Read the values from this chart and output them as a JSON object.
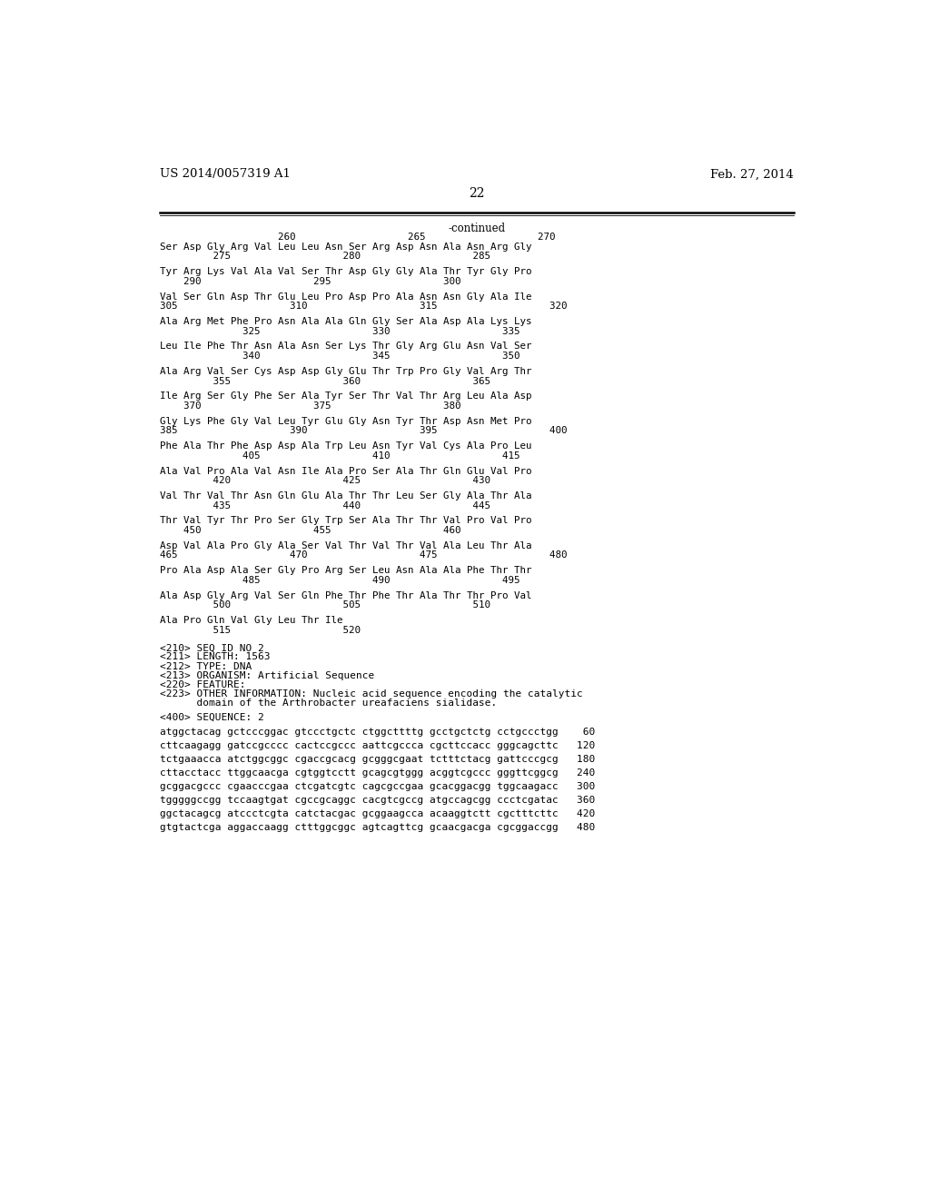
{
  "header_left": "US 2014/0057319 A1",
  "header_right": "Feb. 27, 2014",
  "page_number": "22",
  "continued_label": "-continued",
  "background_color": "#ffffff",
  "text_color": "#000000",
  "sequence_blocks": [
    {
      "seq": "Ser Asp Gly Arg Val Leu Leu Asn Ser Arg Asp Asn Ala Asn Arg Gly",
      "nums": "         275                   280                   285"
    },
    {
      "seq": "Tyr Arg Lys Val Ala Val Ser Thr Asp Gly Gly Ala Thr Tyr Gly Pro",
      "nums": "    290                   295                   300"
    },
    {
      "seq": "Val Ser Gln Asp Thr Glu Leu Pro Asp Pro Ala Asn Asn Gly Ala Ile",
      "nums": "305                   310                   315                   320"
    },
    {
      "seq": "Ala Arg Met Phe Pro Asn Ala Ala Gln Gly Ser Ala Asp Ala Lys Lys",
      "nums": "              325                   330                   335"
    },
    {
      "seq": "Leu Ile Phe Thr Asn Ala Asn Ser Lys Thr Gly Arg Glu Asn Val Ser",
      "nums": "              340                   345                   350"
    },
    {
      "seq": "Ala Arg Val Ser Cys Asp Asp Gly Glu Thr Trp Pro Gly Val Arg Thr",
      "nums": "         355                   360                   365"
    },
    {
      "seq": "Ile Arg Ser Gly Phe Ser Ala Tyr Ser Thr Val Thr Arg Leu Ala Asp",
      "nums": "    370                   375                   380"
    },
    {
      "seq": "Gly Lys Phe Gly Val Leu Tyr Glu Gly Asn Tyr Thr Asp Asn Met Pro",
      "nums": "385                   390                   395                   400"
    },
    {
      "seq": "Phe Ala Thr Phe Asp Asp Ala Trp Leu Asn Tyr Val Cys Ala Pro Leu",
      "nums": "              405                   410                   415"
    },
    {
      "seq": "Ala Val Pro Ala Val Asn Ile Ala Pro Ser Ala Thr Gln Glu Val Pro",
      "nums": "         420                   425                   430"
    },
    {
      "seq": "Val Thr Val Thr Asn Gln Glu Ala Thr Thr Leu Ser Gly Ala Thr Ala",
      "nums": "         435                   440                   445"
    },
    {
      "seq": "Thr Val Tyr Thr Pro Ser Gly Trp Ser Ala Thr Thr Val Pro Val Pro",
      "nums": "    450                   455                   460"
    },
    {
      "seq": "Asp Val Ala Pro Gly Ala Ser Val Thr Val Thr Val Ala Leu Thr Ala",
      "nums": "465                   470                   475                   480"
    },
    {
      "seq": "Pro Ala Asp Ala Ser Gly Pro Arg Ser Leu Asn Ala Ala Phe Thr Thr",
      "nums": "              485                   490                   495"
    },
    {
      "seq": "Ala Asp Gly Arg Val Ser Gln Phe Thr Phe Thr Ala Thr Thr Pro Val",
      "nums": "         500                   505                   510"
    },
    {
      "seq": "Ala Pro Gln Val Gly Leu Thr Ile",
      "nums": "         515                   520"
    }
  ],
  "first_num_line": "                    260                   265                   270",
  "metadata_lines": [
    "<210> SEQ ID NO 2",
    "<211> LENGTH: 1563",
    "<212> TYPE: DNA",
    "<213> ORGANISM: Artificial Sequence",
    "<220> FEATURE:",
    "<223> OTHER INFORMATION: Nucleic acid sequence encoding the catalytic",
    "      domain of the Arthrobacter ureafaciens sialidase."
  ],
  "seq_id_line": "<400> SEQUENCE: 2",
  "dna_lines": [
    {
      "seq": "atggctacag gctcccggac gtccctgctc ctggcttttg gcctgctctg cctgccctgg",
      "num": "    60"
    },
    {
      "seq": "cttcaagagg gatccgcccc cactccgccc aattcgccca cgcttccacc gggcagcttc",
      "num": "   120"
    },
    {
      "seq": "tctgaaacca atctggcggc cgaccgcacg gcgggcgaat tctttctacg gattcccgcg",
      "num": "   180"
    },
    {
      "seq": "cttacctacc ttggcaacga cgtggtcctt gcagcgtggg acggtcgccc gggttcggcg",
      "num": "   240"
    },
    {
      "seq": "gcggacgccc cgaacccgaa ctcgatcgtc cagcgccgaa gcacggacgg tggcaagacc",
      "num": "   300"
    },
    {
      "seq": "tgggggccgg tccaagtgat cgccgcaggc cacgtcgccg atgccagcgg ccctcgatac",
      "num": "   360"
    },
    {
      "seq": "ggctacagcg atccctcgta catctacgac gcggaagcca acaaggtctt cgctttcttc",
      "num": "   420"
    },
    {
      "seq": "gtgtactcga aggaccaagg ctttggcggc agtcagttcg gcaacgacga cgcggaccgg",
      "num": "   480"
    }
  ]
}
